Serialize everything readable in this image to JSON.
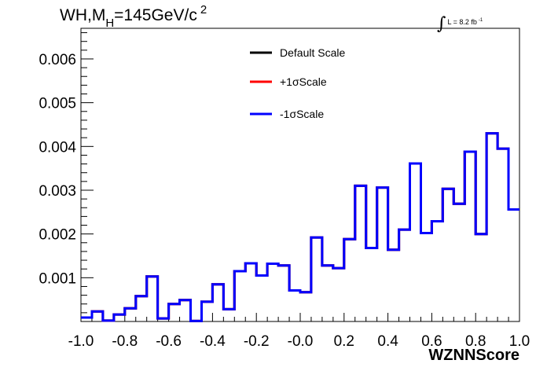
{
  "title": {
    "prefix": "WH,M",
    "subscript": "H",
    "value": "=145GeV/c",
    "superscript": "2"
  },
  "lumi": {
    "integral": "∫",
    "text": "L = 8.2 fb",
    "superscript": "-1"
  },
  "colors": {
    "default": "#000000",
    "plus": "#ff0000",
    "minus": "#0000ff"
  },
  "chart_data": {
    "type": "line",
    "style": "step-histogram",
    "xlabel": "WZNNScore",
    "ylabel": "",
    "xlim": [
      -1.0,
      1.0
    ],
    "ylim": [
      0.0,
      0.0067
    ],
    "x_tick_labels": [
      "-1.0",
      "-0.8",
      "-0.6",
      "-0.4",
      "-0.2",
      "-0.0",
      "0.2",
      "0.4",
      "0.6",
      "0.8",
      "1.0"
    ],
    "y_tick_labels": [
      "0.001",
      "0.002",
      "0.003",
      "0.004",
      "0.005",
      "0.006"
    ],
    "legend_position": "top-center",
    "grid": false,
    "bin_edges": [
      -1.0,
      -0.95,
      -0.9,
      -0.85,
      -0.8,
      -0.75,
      -0.7,
      -0.65,
      -0.6,
      -0.55,
      -0.5,
      -0.45,
      -0.4,
      -0.35,
      -0.3,
      -0.25,
      -0.2,
      -0.15,
      -0.1,
      -0.05,
      0.0,
      0.05,
      0.1,
      0.15,
      0.2,
      0.25,
      0.3,
      0.35,
      0.4,
      0.45,
      0.5,
      0.55,
      0.6,
      0.65,
      0.7,
      0.75,
      0.8,
      0.85,
      0.9,
      0.95,
      1.0
    ],
    "series": [
      {
        "name": "Default Scale",
        "values": [
          9e-05,
          0.00023,
          2e-05,
          0.00016,
          0.0003,
          0.00058,
          0.00103,
          7e-05,
          0.0004,
          0.00049,
          1e-05,
          0.00045,
          0.00085,
          0.00028,
          0.00115,
          0.00133,
          0.00105,
          0.00132,
          0.00128,
          0.00071,
          0.00067,
          0.00192,
          0.00128,
          0.00122,
          0.00188,
          0.0031,
          0.00168,
          0.00306,
          0.00164,
          0.0021,
          0.00361,
          0.00202,
          0.00229,
          0.00303,
          0.00269,
          0.00388,
          0.002,
          0.0043,
          0.00395,
          0.00256
        ]
      },
      {
        "name": "+1σScale",
        "values": [
          9e-05,
          0.00023,
          2e-05,
          0.00016,
          0.0003,
          0.00058,
          0.00103,
          7e-05,
          0.0004,
          0.00049,
          1e-05,
          0.00045,
          0.00085,
          0.00028,
          0.00115,
          0.00133,
          0.00105,
          0.00132,
          0.00128,
          0.00071,
          0.00067,
          0.00192,
          0.00128,
          0.00122,
          0.00188,
          0.0031,
          0.00168,
          0.00306,
          0.00164,
          0.0021,
          0.00361,
          0.00202,
          0.00229,
          0.00303,
          0.00269,
          0.00388,
          0.002,
          0.0043,
          0.00395,
          0.00256
        ]
      },
      {
        "name": "-1σScale",
        "values": [
          9e-05,
          0.00023,
          2e-05,
          0.00016,
          0.0003,
          0.00058,
          0.00103,
          7e-05,
          0.0004,
          0.00049,
          1e-05,
          0.00045,
          0.00085,
          0.00028,
          0.00115,
          0.00133,
          0.00105,
          0.00132,
          0.00128,
          0.00071,
          0.00067,
          0.00192,
          0.00128,
          0.00122,
          0.00188,
          0.0031,
          0.00168,
          0.00306,
          0.00164,
          0.0021,
          0.00361,
          0.00202,
          0.00229,
          0.00303,
          0.00269,
          0.00388,
          0.002,
          0.0043,
          0.00395,
          0.00256
        ]
      }
    ]
  }
}
